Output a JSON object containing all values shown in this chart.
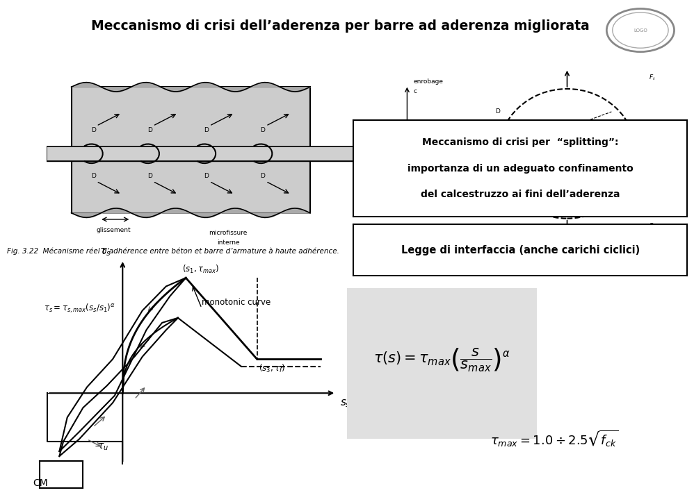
{
  "title": "Meccanismo di crisi dell’aderenza per barre ad aderenza migliorata",
  "bg_color": "#ffffff",
  "plot_bg_color": "#d8d8d8",
  "fig_width": 9.6,
  "fig_height": 7.11,
  "splitting_line1": "Meccanismo di crisi per  “splitting”:",
  "splitting_line2": "importanza di un adeguato confinamento",
  "splitting_line3": "del calcestruzzo ai fini dell’aderenza",
  "legge_text": "Legge di interfaccia (anche carichi ciclici)",
  "formula1": "\\tau(s) = \\tau_{max} \\left( \\dfrac{s}{s_{max}} \\right)^{\\alpha}",
  "formula2": "\\tau_{max} =1.0 \\div 2.5 \\sqrt{f_{ck}}",
  "fig_caption": "Fig. 3.22  Mécanisme réel d’adhérence entre béton et barre d’armature à haute adhérence.",
  "cm_label": "CM",
  "tau_s_label": "$\\tau_s$",
  "s_s_label": "$s_s$",
  "s1_tmax_label": "$(s_1, \\tau_{max})$",
  "s3_tf_label": "$(s_3, \\tau_f)$",
  "tau_u_label": "$\\tau_u$",
  "monotonic_label": "monotonic curve",
  "graph_formula": "$\\tau_s = \\tau_{s,max}\\left(s_s/s_1\\right)^{\\alpha}$"
}
